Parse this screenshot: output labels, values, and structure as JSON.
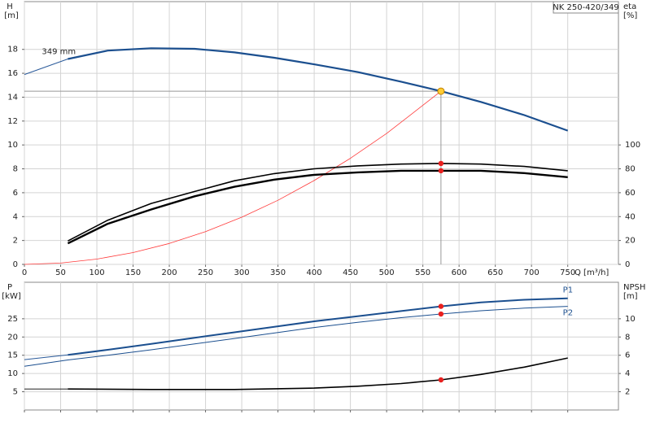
{
  "chart_data": [
    {
      "type": "line",
      "title": "NK 250-420/349",
      "xlabel": "Q [m³/h]",
      "ylabel": "H",
      "yunit": "[m]",
      "y2label": "eta",
      "y2unit": "[%]",
      "xlim": [
        0,
        820
      ],
      "xticks": [
        0,
        50,
        100,
        150,
        200,
        250,
        300,
        350,
        400,
        450,
        500,
        550,
        600,
        650,
        700,
        750
      ],
      "ylim": [
        0,
        22
      ],
      "yticks": [
        0,
        2,
        4,
        6,
        8,
        10,
        12,
        14,
        16,
        18
      ],
      "y2lim": [
        0,
        220
      ],
      "y2ticks": [
        0,
        20,
        40,
        60,
        80,
        100
      ],
      "grid": true,
      "duty_point": {
        "x": 575,
        "y": 14.5
      },
      "series": [
        {
          "color": "#2a5a9a",
          "width": 1,
          "x": [
            0,
            60
          ],
          "values": [
            15.9,
            17.2
          ]
        },
        {
          "name": "349 mm",
          "color": "#1b4f8f",
          "width": 2.2,
          "x": [
            60,
            115,
            175,
            235,
            290,
            345,
            400,
            460,
            520,
            575,
            630,
            690,
            750
          ],
          "values": [
            17.2,
            17.9,
            18.1,
            18.05,
            17.75,
            17.3,
            16.75,
            16.1,
            15.3,
            14.5,
            13.6,
            12.5,
            11.2
          ]
        },
        {
          "color": "#ff3b3b",
          "width": 0.8,
          "x": [
            0,
            50,
            100,
            150,
            200,
            250,
            300,
            350,
            400,
            450,
            500,
            575
          ],
          "values": [
            0,
            0.11,
            0.44,
            0.99,
            1.75,
            2.74,
            3.95,
            5.37,
            7.02,
            8.88,
            10.96,
            14.5
          ]
        },
        {
          "color": "#000000",
          "width": 1.6,
          "axis": "y2",
          "mark": true,
          "x": [
            60,
            115,
            175,
            235,
            290,
            345,
            400,
            460,
            520,
            575,
            630,
            690,
            750
          ],
          "values": [
            19.6,
            37,
            51,
            61,
            70,
            76,
            80,
            82.5,
            84,
            84.5,
            84,
            82,
            78.4
          ]
        },
        {
          "color": "#000000",
          "width": 2.4,
          "axis": "y2",
          "mark": true,
          "x": [
            60,
            115,
            175,
            235,
            290,
            345,
            400,
            460,
            520,
            575,
            630,
            690,
            750
          ],
          "values": [
            17.6,
            34,
            46,
            57,
            65,
            71,
            75,
            77,
            78.4,
            78.4,
            78.4,
            76.4,
            73
          ]
        }
      ]
    },
    {
      "type": "line",
      "ylabel": "P",
      "yunit": "[kW]",
      "y2label": "NPSH",
      "y2unit": "[m]",
      "xlim": [
        0,
        820
      ],
      "xticks": [
        0,
        50,
        100,
        150,
        200,
        250,
        300,
        350,
        400,
        450,
        500,
        550,
        600,
        650,
        700,
        750
      ],
      "xtick_labels": false,
      "ylim": [
        0,
        35
      ],
      "yticks": [
        5,
        10,
        15,
        20,
        25
      ],
      "y2lim": [
        0,
        14
      ],
      "y2ticks": [
        2,
        4,
        6,
        8,
        10
      ],
      "grid": true,
      "marker_x": 575,
      "series": [
        {
          "color": "#2a5a9a",
          "width": 1,
          "x": [
            0,
            60
          ],
          "values": [
            13.8,
            15.1
          ]
        },
        {
          "name": "P1",
          "color": "#1b4f8f",
          "width": 2,
          "mark": true,
          "x": [
            60,
            115,
            175,
            235,
            290,
            345,
            400,
            460,
            520,
            575,
            630,
            690,
            750
          ],
          "values": [
            15.1,
            16.5,
            18.1,
            19.8,
            21.3,
            22.8,
            24.3,
            25.7,
            27.1,
            28.4,
            29.5,
            30.2,
            30.6
          ]
        },
        {
          "name": "P2",
          "color": "#1b4f8f",
          "width": 1,
          "mark": true,
          "x": [
            0,
            60,
            115,
            175,
            235,
            290,
            345,
            400,
            460,
            520,
            575,
            630,
            690,
            750
          ],
          "values": [
            12.0,
            13.7,
            15.0,
            16.5,
            18.1,
            19.6,
            21.1,
            22.6,
            24.0,
            25.3,
            26.3,
            27.2,
            27.9,
            28.4
          ]
        },
        {
          "color": "#000000",
          "width": 0.8,
          "axis": "y2",
          "x": [
            0,
            60
          ],
          "values": [
            2.3,
            2.3
          ]
        },
        {
          "color": "#000000",
          "width": 1.6,
          "axis": "y2",
          "mark": true,
          "x": [
            60,
            175,
            290,
            400,
            460,
            520,
            575,
            630,
            690,
            750
          ],
          "values": [
            2.3,
            2.25,
            2.25,
            2.4,
            2.6,
            2.9,
            3.3,
            3.9,
            4.7,
            5.7
          ]
        }
      ]
    }
  ]
}
